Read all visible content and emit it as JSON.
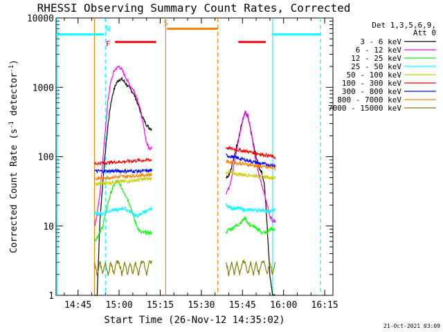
{
  "chart_data": {
    "type": "line",
    "title": "RHESSI Observing Summary Count Rates, Corrected",
    "xlabel": "Start Time (26-Nov-12 14:35:02)",
    "ylabel_main": "Corrected Count Rate (s",
    "ylabel_sup1": "-1",
    "ylabel_mid": " detector",
    "ylabel_sup2": "-1",
    "ylabel_end": ")",
    "yscale": "log",
    "ylim": [
      1,
      10000
    ],
    "xlim_min": [
      37,
      138
    ],
    "x_ticks": [
      {
        "m": 45,
        "label": "14:45"
      },
      {
        "m": 60,
        "label": "15:00"
      },
      {
        "m": 75,
        "label": "15:15"
      },
      {
        "m": 90,
        "label": "15:30"
      },
      {
        "m": 105,
        "label": "15:45"
      },
      {
        "m": 120,
        "label": "16:00"
      },
      {
        "m": 135,
        "label": "16:15"
      }
    ],
    "y_ticks": [
      {
        "v": 1,
        "label": "1"
      },
      {
        "v": 10,
        "label": "10"
      },
      {
        "v": 100,
        "label": "100"
      },
      {
        "v": 1000,
        "label": "1000"
      },
      {
        "v": 10000,
        "label": "10000"
      }
    ],
    "legend_title_1": "Det 1,3,5,6,9,",
    "legend_title_2": "Att 0",
    "legend_placement": "right",
    "timestamp": "21-Oct-2021 03:09",
    "series": [
      {
        "name": "3 - 6 keV",
        "color": "#000000",
        "orbits": [
          {
            "t": [
              51,
              52,
              53,
              54,
              55,
              56,
              57,
              58,
              59,
              60,
              61,
              62,
              63,
              64,
              65,
              66,
              67,
              68,
              69,
              70,
              71,
              72
            ],
            "v": [
              1,
              1,
              12,
              40,
              120,
              300,
              600,
              900,
              1150,
              1300,
              1300,
              1200,
              1050,
              950,
              850,
              700,
              550,
              420,
              340,
              290,
              260,
              250
            ]
          },
          {
            "t": [
              99,
              100,
              101,
              102,
              103,
              104,
              105,
              106,
              107,
              108,
              109,
              110,
              111,
              112,
              113,
              114,
              115,
              116,
              117
            ],
            "v": [
              50,
              55,
              70,
              100,
              150,
              220,
              330,
              430,
              360,
              240,
              150,
              100,
              70,
              60,
              40,
              10,
              2,
              1,
              1
            ]
          }
        ]
      },
      {
        "name": "6 - 12 keV",
        "color": "#ff00ff",
        "orbits": [
          {
            "t": [
              51,
              52,
              53,
              54,
              55,
              56,
              57,
              58,
              59,
              60,
              61,
              62,
              63,
              64,
              65,
              66,
              67,
              68,
              69,
              70,
              71,
              72
            ],
            "v": [
              10,
              15,
              30,
              80,
              250,
              700,
              1200,
              1650,
              1900,
              2000,
              1800,
              1500,
              1250,
              1050,
              950,
              800,
              620,
              420,
              260,
              160,
              130,
              140
            ]
          },
          {
            "t": [
              99,
              100,
              101,
              102,
              103,
              104,
              105,
              106,
              107,
              108,
              109,
              110,
              111,
              112,
              113,
              114,
              115,
              116,
              117
            ],
            "v": [
              30,
              35,
              50,
              80,
              130,
              210,
              320,
              450,
              400,
              250,
              140,
              80,
              55,
              40,
              30,
              20,
              14,
              12,
              12
            ]
          }
        ]
      },
      {
        "name": "12 - 25 keV",
        "color": "#00ff00",
        "orbits": [
          {
            "t": [
              51,
              52,
              53,
              54,
              55,
              56,
              57,
              58,
              59,
              60,
              61,
              62,
              63,
              64,
              65,
              66,
              67,
              68,
              69,
              70,
              71,
              72
            ],
            "v": [
              6,
              7,
              8,
              10,
              15,
              22,
              30,
              38,
              45,
              42,
              35,
              30,
              25,
              20,
              15,
              11,
              9,
              8,
              8,
              8,
              8,
              8
            ]
          },
          {
            "t": [
              99,
              100,
              101,
              102,
              103,
              104,
              105,
              106,
              107,
              108,
              109,
              110,
              111,
              112,
              113,
              114,
              115,
              116,
              117
            ],
            "v": [
              8,
              9,
              9,
              10,
              10,
              11,
              12,
              13,
              11,
              10,
              10,
              9,
              9,
              8,
              8,
              8,
              9,
              9,
              9
            ]
          }
        ]
      },
      {
        "name": "25 - 50 keV",
        "color": "#00ffff",
        "orbits": [
          {
            "t": [
              51,
              52,
              53,
              54,
              55,
              56,
              57,
              58,
              59,
              60,
              61,
              62,
              63,
              64,
              65,
              66,
              67,
              68,
              69,
              70,
              71,
              72
            ],
            "v": [
              15,
              15,
              15,
              15,
              16,
              16,
              17,
              17,
              17,
              17,
              18,
              18,
              17,
              16,
              15,
              14,
              14,
              15,
              16,
              16,
              17,
              18
            ]
          },
          {
            "t": [
              99,
              100,
              101,
              102,
              103,
              104,
              105,
              106,
              107,
              108,
              109,
              110,
              111,
              112,
              113,
              114,
              115,
              116,
              117
            ],
            "v": [
              20,
              19,
              18,
              18,
              18,
              18,
              17,
              17,
              17,
              17,
              17,
              17,
              17,
              17,
              17,
              16,
              16,
              17,
              17
            ]
          }
        ]
      },
      {
        "name": "50 - 100 keV",
        "color": "#cccc00",
        "orbits": [
          {
            "t": [
              51,
              52,
              53,
              54,
              55,
              56,
              57,
              58,
              59,
              60,
              61,
              62,
              63,
              64,
              65,
              66,
              67,
              68,
              69,
              70,
              71,
              72
            ],
            "v": [
              40,
              40,
              41,
              41,
              42,
              42,
              42,
              43,
              43,
              43,
              44,
              44,
              44,
              45,
              45,
              46,
              46,
              47,
              47,
              48,
              48,
              48
            ]
          },
          {
            "t": [
              99,
              100,
              101,
              102,
              103,
              104,
              105,
              106,
              107,
              108,
              109,
              110,
              111,
              112,
              113,
              114,
              115,
              116,
              117
            ],
            "v": [
              60,
              59,
              58,
              57,
              56,
              56,
              55,
              55,
              54,
              54,
              53,
              53,
              52,
              52,
              51,
              51,
              50,
              50,
              50
            ]
          }
        ]
      },
      {
        "name": "100 - 300 keV",
        "color": "#ff0000",
        "orbits": [
          {
            "t": [
              51,
              52,
              53,
              54,
              55,
              56,
              57,
              58,
              59,
              60,
              61,
              62,
              63,
              64,
              65,
              66,
              67,
              68,
              69,
              70,
              71,
              72
            ],
            "v": [
              80,
              80,
              81,
              81,
              82,
              82,
              83,
              83,
              84,
              84,
              85,
              85,
              86,
              86,
              87,
              87,
              88,
              88,
              89,
              89,
              90,
              90
            ]
          },
          {
            "t": [
              99,
              100,
              101,
              102,
              103,
              104,
              105,
              106,
              107,
              108,
              109,
              110,
              111,
              112,
              113,
              114,
              115,
              116,
              117
            ],
            "v": [
              135,
              132,
              130,
              128,
              126,
              124,
              122,
              120,
              118,
              116,
              114,
              112,
              110,
              108,
              106,
              104,
              102,
              100,
              98
            ]
          }
        ]
      },
      {
        "name": "300 - 800 keV",
        "color": "#0000ff",
        "orbits": [
          {
            "t": [
              51,
              52,
              53,
              54,
              55,
              56,
              57,
              58,
              59,
              60,
              61,
              62,
              63,
              64,
              65,
              66,
              67,
              68,
              69,
              70,
              71,
              72
            ],
            "v": [
              62,
              62,
              62,
              62,
              62,
              62,
              62,
              62,
              62,
              62,
              62,
              62,
              62,
              62,
              62,
              62,
              62,
              62,
              62,
              62,
              63,
              63
            ]
          },
          {
            "t": [
              99,
              100,
              101,
              102,
              103,
              104,
              105,
              106,
              107,
              108,
              109,
              110,
              111,
              112,
              113,
              114,
              115,
              116,
              117
            ],
            "v": [
              105,
              102,
              100,
              98,
              96,
              94,
              92,
              90,
              88,
              86,
              84,
              82,
              80,
              79,
              78,
              77,
              76,
              75,
              75
            ]
          }
        ]
      },
      {
        "name": "800 - 7000 keV",
        "color": "#ff8000",
        "orbits": [
          {
            "t": [
              51,
              52,
              53,
              54,
              55,
              56,
              57,
              58,
              59,
              60,
              61,
              62,
              63,
              64,
              65,
              66,
              67,
              68,
              69,
              70,
              71,
              72
            ],
            "v": [
              48,
              48,
              49,
              49,
              50,
              50,
              50,
              51,
              51,
              51,
              52,
              52,
              52,
              53,
              53,
              53,
              54,
              54,
              54,
              55,
              55,
              55
            ]
          },
          {
            "t": [
              99,
              100,
              101,
              102,
              103,
              104,
              105,
              106,
              107,
              108,
              109,
              110,
              111,
              112,
              113,
              114,
              115,
              116,
              117
            ],
            "v": [
              85,
              84,
              83,
              82,
              81,
              80,
              79,
              78,
              77,
              76,
              75,
              74,
              73,
              72,
              71,
              70,
              70,
              69,
              68
            ]
          }
        ]
      },
      {
        "name": "7000 - 15000 keV",
        "color": "#808000",
        "orbits": [
          {
            "t": [
              51,
              52,
              53,
              54,
              55,
              56,
              57,
              58,
              59,
              60,
              61,
              62,
              63,
              64,
              65,
              66,
              67,
              68,
              69,
              70,
              71,
              72
            ],
            "v": [
              3,
              2,
              3,
              2,
              3,
              2,
              3,
              2,
              3,
              3,
              2,
              3,
              2,
              3,
              2,
              3,
              2,
              3,
              3,
              2,
              3,
              3
            ]
          },
          {
            "t": [
              99,
              100,
              101,
              102,
              103,
              104,
              105,
              106,
              107,
              108,
              109,
              110,
              111,
              112,
              113,
              114,
              115,
              116,
              117
            ],
            "v": [
              3,
              2,
              3,
              2,
              3,
              2,
              3,
              3,
              2,
              3,
              2,
              3,
              2,
              3,
              3,
              2,
              3,
              2,
              3
            ]
          }
        ]
      }
    ],
    "annotations": [
      {
        "label": "N",
        "color": "#00ffff",
        "x": 56
      },
      {
        "label": "F",
        "color": "#ff0000",
        "x": 56
      },
      {
        "label": "S",
        "color": "#ff8000",
        "x": 77
      }
    ],
    "bars": [
      {
        "color": "#00ffff",
        "x0": 37,
        "x1": 54.5,
        "y": 5800
      },
      {
        "color": "#00ffff",
        "x0": 116,
        "x1": 133.5,
        "y": 5800
      },
      {
        "color": "#ff8000",
        "x0": 77.5,
        "x1": 96,
        "y": 7000
      },
      {
        "color": "#ff0000",
        "x0": 58.5,
        "x1": 73.5,
        "y": 4500
      },
      {
        "color": "#ff0000",
        "x0": 103.5,
        "x1": 113.5,
        "y": 4500
      }
    ],
    "vlines": [
      {
        "color": "#00ffff",
        "x": 37.5,
        "style": "solid"
      },
      {
        "color": "#00ffff",
        "x": 55,
        "style": "dashed"
      },
      {
        "color": "#00ffff",
        "x": 116,
        "style": "solid"
      },
      {
        "color": "#00ffff",
        "x": 133.5,
        "style": "dashed"
      },
      {
        "color": "#ff8000",
        "x": 51,
        "style": "solid"
      },
      {
        "color": "#ff8000",
        "x": 77,
        "style": "solid"
      },
      {
        "color": "#ff8000",
        "x": 96,
        "style": "dashed"
      }
    ]
  }
}
